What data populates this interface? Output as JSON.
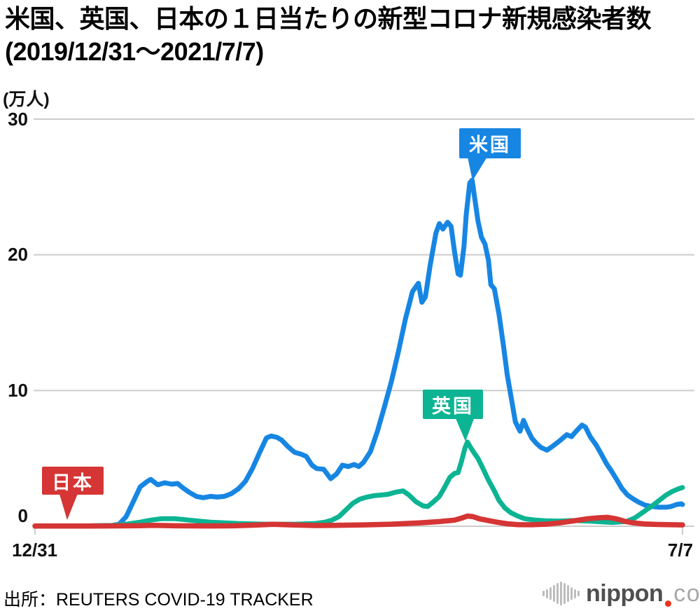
{
  "header": {
    "title_line1": "米国、英国、日本の１日当たりの新型コロナ新規感染者数",
    "title_line2": "(2019/12/31～2021/7/7)"
  },
  "footer": {
    "source": "出所：REUTERS COVID-19 TRACKER",
    "logo": {
      "name": "nippon.com",
      "text_main": "nippon",
      "text_suffix": "com",
      "dot_color": "#e8341c"
    }
  },
  "chart_data": {
    "type": "line",
    "title": "米国、英国、日本の1日当たりの新型コロナ新規感染者数 (2019/12/31～2021/7/7)",
    "unit_label": "(万人)",
    "xlabel": "",
    "ylabel": "万人",
    "ylim": [
      0,
      30
    ],
    "y_ticks": [
      0,
      10,
      20,
      30
    ],
    "y_tick_labels": [
      "30",
      "20",
      "10",
      "0"
    ],
    "x_start_label": "12/31",
    "x_end_label": "7/7",
    "x_range_days": 554,
    "grid_color": "#cccccc",
    "legend_position": "inline-callouts",
    "series": [
      {
        "id": "us",
        "name": "米国",
        "color": "#1786e3",
        "points": [
          [
            0,
            0.02
          ],
          [
            42,
            0.02
          ],
          [
            66,
            0.05
          ],
          [
            72,
            0.15
          ],
          [
            78,
            0.7
          ],
          [
            84,
            1.8
          ],
          [
            90,
            2.9
          ],
          [
            96,
            3.3
          ],
          [
            99,
            3.45
          ],
          [
            105,
            3.05
          ],
          [
            111,
            3.2
          ],
          [
            117,
            3.1
          ],
          [
            122,
            3.15
          ],
          [
            127,
            2.8
          ],
          [
            132,
            2.5
          ],
          [
            138,
            2.2
          ],
          [
            144,
            2.1
          ],
          [
            150,
            2.2
          ],
          [
            156,
            2.15
          ],
          [
            162,
            2.2
          ],
          [
            168,
            2.4
          ],
          [
            174,
            2.75
          ],
          [
            180,
            3.3
          ],
          [
            186,
            4.25
          ],
          [
            192,
            5.4
          ],
          [
            198,
            6.5
          ],
          [
            202,
            6.65
          ],
          [
            207,
            6.55
          ],
          [
            211,
            6.35
          ],
          [
            216,
            5.9
          ],
          [
            222,
            5.45
          ],
          [
            228,
            5.3
          ],
          [
            232,
            5.15
          ],
          [
            237,
            4.5
          ],
          [
            241,
            4.25
          ],
          [
            247,
            4.2
          ],
          [
            253,
            3.5
          ],
          [
            258,
            3.85
          ],
          [
            263,
            4.5
          ],
          [
            268,
            4.4
          ],
          [
            273,
            4.55
          ],
          [
            277,
            4.4
          ],
          [
            281,
            4.7
          ],
          [
            287,
            5.5
          ],
          [
            293,
            7.0
          ],
          [
            299,
            8.8
          ],
          [
            305,
            10.7
          ],
          [
            311,
            12.9
          ],
          [
            317,
            15.3
          ],
          [
            323,
            17.3
          ],
          [
            328,
            17.9
          ],
          [
            331,
            16.5
          ],
          [
            334,
            16.9
          ],
          [
            338,
            19.2
          ],
          [
            343,
            21.6
          ],
          [
            346,
            22.3
          ],
          [
            349,
            21.9
          ],
          [
            353,
            22.4
          ],
          [
            356,
            22.1
          ],
          [
            359,
            20.2
          ],
          [
            362,
            18.6
          ],
          [
            364,
            18.5
          ],
          [
            367,
            20.6
          ],
          [
            369,
            23.0
          ],
          [
            372,
            25.3
          ],
          [
            374,
            25.5
          ],
          [
            376,
            24.3
          ],
          [
            379,
            22.5
          ],
          [
            382,
            21.3
          ],
          [
            385,
            20.8
          ],
          [
            388,
            19.6
          ],
          [
            390,
            17.8
          ],
          [
            393,
            17.5
          ],
          [
            397,
            15.6
          ],
          [
            401,
            13.2
          ],
          [
            404,
            11.2
          ],
          [
            408,
            9.2
          ],
          [
            411,
            7.7
          ],
          [
            415,
            7.0
          ],
          [
            418,
            7.8
          ],
          [
            421,
            7.2
          ],
          [
            425,
            6.5
          ],
          [
            429,
            6.1
          ],
          [
            433,
            5.8
          ],
          [
            438,
            5.6
          ],
          [
            443,
            5.9
          ],
          [
            449,
            6.3
          ],
          [
            455,
            6.75
          ],
          [
            459,
            6.6
          ],
          [
            463,
            7.0
          ],
          [
            468,
            7.45
          ],
          [
            471,
            7.3
          ],
          [
            475,
            6.6
          ],
          [
            480,
            6.0
          ],
          [
            484,
            5.4
          ],
          [
            489,
            4.6
          ],
          [
            493,
            4.1
          ],
          [
            498,
            3.4
          ],
          [
            502,
            2.8
          ],
          [
            507,
            2.3
          ],
          [
            512,
            2.0
          ],
          [
            517,
            1.75
          ],
          [
            522,
            1.55
          ],
          [
            528,
            1.45
          ],
          [
            534,
            1.4
          ],
          [
            540,
            1.4
          ],
          [
            544,
            1.45
          ],
          [
            549,
            1.6
          ],
          [
            553,
            1.65
          ],
          [
            554,
            1.6
          ]
        ]
      },
      {
        "id": "uk",
        "name": "英国",
        "color": "#0cb493",
        "points": [
          [
            0,
            0.01
          ],
          [
            42,
            0.02
          ],
          [
            66,
            0.05
          ],
          [
            78,
            0.15
          ],
          [
            90,
            0.3
          ],
          [
            99,
            0.45
          ],
          [
            108,
            0.55
          ],
          [
            120,
            0.55
          ],
          [
            132,
            0.45
          ],
          [
            150,
            0.3
          ],
          [
            174,
            0.2
          ],
          [
            198,
            0.15
          ],
          [
            222,
            0.15
          ],
          [
            240,
            0.2
          ],
          [
            248,
            0.3
          ],
          [
            254,
            0.45
          ],
          [
            260,
            0.7
          ],
          [
            266,
            1.2
          ],
          [
            272,
            1.7
          ],
          [
            278,
            2.0
          ],
          [
            284,
            2.15
          ],
          [
            290,
            2.25
          ],
          [
            296,
            2.3
          ],
          [
            302,
            2.35
          ],
          [
            308,
            2.5
          ],
          [
            315,
            2.6
          ],
          [
            320,
            2.3
          ],
          [
            326,
            1.8
          ],
          [
            332,
            1.5
          ],
          [
            336,
            1.45
          ],
          [
            341,
            1.8
          ],
          [
            346,
            2.2
          ],
          [
            350,
            2.8
          ],
          [
            355,
            3.6
          ],
          [
            359,
            3.9
          ],
          [
            362,
            3.95
          ],
          [
            365,
            4.8
          ],
          [
            368,
            5.8
          ],
          [
            370,
            6.2
          ],
          [
            372,
            5.9
          ],
          [
            375,
            5.5
          ],
          [
            379,
            5.0
          ],
          [
            383,
            4.3
          ],
          [
            388,
            3.4
          ],
          [
            393,
            2.6
          ],
          [
            397,
            1.9
          ],
          [
            402,
            1.35
          ],
          [
            407,
            1.0
          ],
          [
            413,
            0.75
          ],
          [
            419,
            0.55
          ],
          [
            428,
            0.45
          ],
          [
            437,
            0.4
          ],
          [
            449,
            0.38
          ],
          [
            461,
            0.42
          ],
          [
            473,
            0.38
          ],
          [
            485,
            0.32
          ],
          [
            494,
            0.28
          ],
          [
            506,
            0.35
          ],
          [
            513,
            0.6
          ],
          [
            518,
            0.9
          ],
          [
            523,
            1.2
          ],
          [
            528,
            1.5
          ],
          [
            534,
            1.9
          ],
          [
            540,
            2.3
          ],
          [
            545,
            2.55
          ],
          [
            549,
            2.7
          ],
          [
            552,
            2.8
          ],
          [
            554,
            2.85
          ]
        ]
      },
      {
        "id": "jp",
        "name": "日本",
        "color": "#d53534",
        "points": [
          [
            0,
            0.01
          ],
          [
            30,
            0.01
          ],
          [
            60,
            0.02
          ],
          [
            90,
            0.04
          ],
          [
            100,
            0.06
          ],
          [
            110,
            0.05
          ],
          [
            120,
            0.03
          ],
          [
            150,
            0.02
          ],
          [
            170,
            0.03
          ],
          [
            186,
            0.08
          ],
          [
            200,
            0.13
          ],
          [
            204,
            0.14
          ],
          [
            215,
            0.11
          ],
          [
            222,
            0.09
          ],
          [
            240,
            0.05
          ],
          [
            257,
            0.06
          ],
          [
            281,
            0.1
          ],
          [
            305,
            0.15
          ],
          [
            329,
            0.25
          ],
          [
            347,
            0.35
          ],
          [
            359,
            0.45
          ],
          [
            365,
            0.6
          ],
          [
            370,
            0.75
          ],
          [
            375,
            0.7
          ],
          [
            380,
            0.55
          ],
          [
            386,
            0.45
          ],
          [
            395,
            0.3
          ],
          [
            404,
            0.18
          ],
          [
            413,
            0.12
          ],
          [
            425,
            0.11
          ],
          [
            437,
            0.15
          ],
          [
            449,
            0.25
          ],
          [
            461,
            0.4
          ],
          [
            473,
            0.55
          ],
          [
            482,
            0.62
          ],
          [
            490,
            0.65
          ],
          [
            497,
            0.55
          ],
          [
            505,
            0.35
          ],
          [
            512,
            0.25
          ],
          [
            521,
            0.17
          ],
          [
            533,
            0.13
          ],
          [
            545,
            0.11
          ],
          [
            554,
            0.1
          ]
        ]
      }
    ]
  }
}
